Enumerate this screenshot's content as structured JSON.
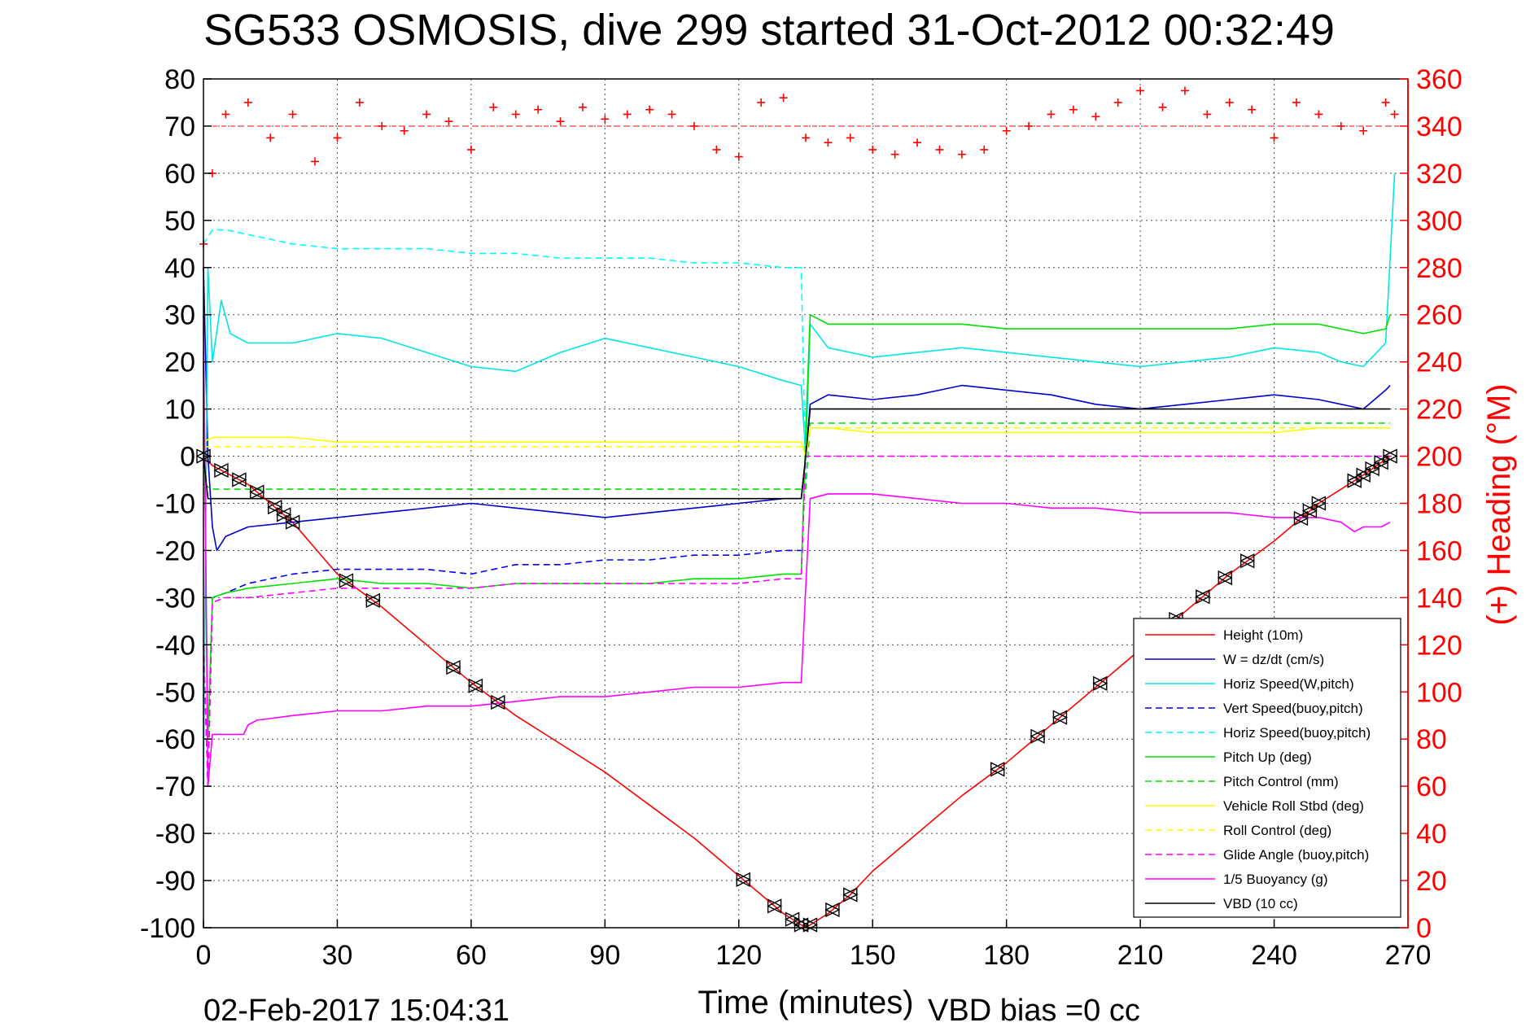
{
  "chart_data": {
    "type": "line",
    "title": "SG533 OSMOSIS, dive 299 started 31-Oct-2012 00:32:49",
    "xlabel": "Time (minutes)",
    "ylabel": "",
    "ylabel_right": "(+) Heading (°M)",
    "xlim": [
      0,
      270
    ],
    "ylim": [
      -100,
      80
    ],
    "ylim_right": [
      0,
      360
    ],
    "x_ticks": [
      "0",
      "30",
      "60",
      "90",
      "120",
      "150",
      "180",
      "210",
      "240",
      "270"
    ],
    "y_ticks": [
      "80",
      "70",
      "60",
      "50",
      "40",
      "30",
      "20",
      "10",
      "0",
      "-10",
      "-20",
      "-30",
      "-40",
      "-50",
      "-60",
      "-70",
      "-80",
      "-90",
      "-100"
    ],
    "y_ticks_right": [
      "360",
      "340",
      "320",
      "300",
      "280",
      "260",
      "240",
      "220",
      "200",
      "180",
      "160",
      "140",
      "120",
      "100",
      "80",
      "60",
      "40",
      "20",
      "0"
    ],
    "grid": true,
    "legend_position": "bottom-right",
    "footer_date": "02-Feb-2017 15:04:31",
    "footer_bias": "VBD bias =0 cc",
    "series": [
      {
        "name": "Height (10m)",
        "color": "#ff0000",
        "style": "solid",
        "x": [
          0,
          2,
          10,
          20,
          30,
          40,
          50,
          60,
          70,
          80,
          90,
          100,
          110,
          120,
          125,
          130,
          135,
          140,
          145,
          150,
          160,
          170,
          180,
          190,
          200,
          210,
          220,
          230,
          240,
          250,
          260,
          266
        ],
        "y": [
          0,
          -2,
          -6,
          -14,
          -25,
          -32,
          -40,
          -48,
          -55,
          -61,
          -67,
          -74,
          -81,
          -89,
          -93,
          -97,
          -100,
          -97,
          -93,
          -88,
          -80,
          -72,
          -65,
          -57,
          -49,
          -41,
          -33,
          -25,
          -18,
          -10,
          -4,
          0
        ]
      },
      {
        "name": "W = dz/dt (cm/s)",
        "color": "#0000cc",
        "style": "solid",
        "x": [
          0,
          1,
          2,
          3,
          5,
          10,
          20,
          30,
          40,
          50,
          60,
          70,
          80,
          90,
          100,
          110,
          120,
          130,
          134,
          135,
          136,
          140,
          150,
          160,
          170,
          180,
          190,
          200,
          210,
          220,
          230,
          240,
          250,
          255,
          260,
          265,
          266
        ],
        "y": [
          40,
          0,
          -15,
          -20,
          -17,
          -15,
          -14,
          -13,
          -12,
          -11,
          -10,
          -11,
          -12,
          -13,
          -12,
          -11,
          -10,
          -9,
          -9,
          0,
          11,
          13,
          12,
          13,
          15,
          14,
          13,
          11,
          10,
          11,
          12,
          13,
          12,
          11,
          10,
          14,
          15
        ]
      },
      {
        "name": "Horiz Speed(W,pitch)",
        "color": "#00e5e5",
        "style": "solid",
        "x": [
          0,
          1,
          2,
          4,
          6,
          10,
          20,
          30,
          40,
          50,
          60,
          70,
          80,
          90,
          100,
          110,
          120,
          130,
          134,
          135,
          136,
          140,
          150,
          160,
          170,
          180,
          190,
          200,
          210,
          220,
          230,
          240,
          250,
          255,
          260,
          265,
          267
        ],
        "y": [
          -70,
          40,
          20,
          33,
          26,
          24,
          24,
          26,
          25,
          22,
          19,
          18,
          22,
          25,
          23,
          21,
          19,
          16,
          15,
          0,
          28,
          23,
          21,
          22,
          23,
          22,
          21,
          20,
          19,
          20,
          21,
          23,
          22,
          20,
          19,
          24,
          60
        ]
      },
      {
        "name": "Vert Speed(buoy,pitch)",
        "color": "#0000ff",
        "style": "dashed",
        "x": [
          0,
          1,
          2,
          5,
          10,
          20,
          30,
          40,
          50,
          60,
          70,
          80,
          90,
          100,
          110,
          120,
          130,
          134,
          135
        ],
        "y": [
          -40,
          -70,
          -30,
          -29,
          -27,
          -25,
          -24,
          -24,
          -24,
          -25,
          -23,
          -23,
          -22,
          -22,
          -21,
          -21,
          -20,
          -20,
          -20
        ]
      },
      {
        "name": "Horiz Speed(buoy,pitch)",
        "color": "#00ffff",
        "style": "dashed",
        "x": [
          0,
          2,
          5,
          10,
          20,
          30,
          40,
          50,
          60,
          70,
          80,
          90,
          100,
          110,
          120,
          130,
          134,
          135
        ],
        "y": [
          45,
          48,
          48,
          47,
          45,
          44,
          44,
          44,
          43,
          43,
          42,
          42,
          42,
          41,
          41,
          40,
          40,
          -5
        ]
      },
      {
        "name": "Pitch Up (deg)",
        "color": "#00e000",
        "style": "solid",
        "x": [
          0,
          1,
          2,
          5,
          10,
          20,
          30,
          40,
          50,
          60,
          70,
          80,
          90,
          100,
          110,
          120,
          130,
          134,
          135,
          136,
          140,
          150,
          160,
          170,
          180,
          190,
          200,
          210,
          220,
          230,
          240,
          250,
          255,
          260,
          265,
          266
        ],
        "y": [
          20,
          -60,
          -30,
          -29,
          -28,
          -27,
          -26,
          -27,
          -27,
          -28,
          -27,
          -27,
          -27,
          -27,
          -26,
          -26,
          -25,
          -25,
          5,
          30,
          28,
          28,
          28,
          28,
          27,
          27,
          27,
          27,
          27,
          27,
          28,
          28,
          27,
          26,
          27,
          30
        ]
      },
      {
        "name": "Pitch Control (mm)",
        "color": "#00e000",
        "style": "dashed",
        "x": [
          0,
          2,
          135,
          136,
          266
        ],
        "y": [
          -6,
          -7,
          -7,
          7,
          7
        ]
      },
      {
        "name": "Vehicle Roll Stbd (deg)",
        "color": "#ffff00",
        "style": "solid",
        "x": [
          0,
          2,
          10,
          20,
          30,
          40,
          50,
          60,
          70,
          80,
          90,
          100,
          110,
          120,
          130,
          134,
          135,
          136,
          140,
          150,
          160,
          170,
          180,
          190,
          200,
          210,
          220,
          230,
          240,
          250,
          260,
          266
        ],
        "y": [
          3,
          4,
          4,
          4,
          3,
          3,
          3,
          3,
          3,
          3,
          3,
          3,
          3,
          3,
          3,
          3,
          0,
          6,
          6,
          5,
          5,
          5,
          5,
          5,
          5,
          5,
          5,
          5,
          5,
          6,
          6,
          6
        ]
      },
      {
        "name": "Roll Control (deg)",
        "color": "#ffff00",
        "style": "dashed",
        "x": [
          0,
          135,
          136,
          266
        ],
        "y": [
          2,
          2,
          6,
          6
        ]
      },
      {
        "name": "Glide Angle (buoy,pitch)",
        "color": "#ff00ff",
        "style": "dashed",
        "x": [
          0,
          1,
          2,
          5,
          10,
          20,
          30,
          40,
          50,
          60,
          70,
          80,
          90,
          100,
          110,
          120,
          130,
          134,
          135,
          136,
          266
        ],
        "y": [
          -40,
          -70,
          -31,
          -30,
          -30,
          -29,
          -28,
          -28,
          -28,
          -28,
          -27,
          -27,
          -27,
          -27,
          -27,
          -27,
          -26,
          -26,
          0,
          0,
          0
        ]
      },
      {
        "name": "1/5 Buoyancy (g)",
        "color": "#ff00ff",
        "style": "solid",
        "x": [
          0,
          1,
          2,
          9,
          10,
          12,
          20,
          30,
          40,
          50,
          60,
          70,
          80,
          90,
          100,
          110,
          120,
          130,
          134,
          135,
          136,
          140,
          150,
          160,
          170,
          180,
          190,
          200,
          210,
          220,
          230,
          240,
          250,
          255,
          258,
          260,
          264,
          266
        ],
        "y": [
          30,
          -70,
          -59,
          -59,
          -57,
          -56,
          -55,
          -54,
          -54,
          -53,
          -53,
          -52,
          -51,
          -51,
          -50,
          -49,
          -49,
          -48,
          -48,
          -28,
          -9,
          -8,
          -8,
          -9,
          -10,
          -10,
          -11,
          -11,
          -12,
          -12,
          -12,
          -13,
          -13,
          -14,
          -16,
          -15,
          -15,
          -14
        ]
      },
      {
        "name": "VBD (10 cc)",
        "color": "#000000",
        "style": "solid",
        "x": [
          0,
          1,
          2,
          134,
          135,
          136,
          266
        ],
        "y": [
          0,
          -9,
          -9,
          -9,
          0,
          10,
          10
        ]
      }
    ],
    "heading_series": {
      "name": "Heading",
      "color": "#ff0000",
      "marker": "+",
      "axis": "right",
      "x": [
        0,
        2,
        5,
        10,
        15,
        20,
        25,
        30,
        35,
        40,
        45,
        50,
        55,
        60,
        65,
        70,
        75,
        80,
        85,
        90,
        95,
        100,
        105,
        110,
        115,
        120,
        125,
        130,
        135,
        140,
        145,
        150,
        155,
        160,
        165,
        170,
        175,
        180,
        185,
        190,
        195,
        200,
        205,
        210,
        215,
        220,
        225,
        230,
        235,
        240,
        245,
        250,
        255,
        260,
        265,
        267
      ],
      "y": [
        290,
        320,
        345,
        350,
        335,
        345,
        325,
        335,
        350,
        340,
        338,
        345,
        342,
        330,
        348,
        345,
        347,
        342,
        348,
        343,
        345,
        347,
        345,
        340,
        330,
        327,
        350,
        352,
        335,
        333,
        335,
        330,
        328,
        333,
        330,
        328,
        330,
        338,
        340,
        345,
        347,
        344,
        350,
        355,
        348,
        355,
        345,
        350,
        347,
        335,
        350,
        345,
        340,
        338,
        350,
        345
      ]
    },
    "heading_reference": {
      "color": "#ff0000",
      "style": "dashed",
      "axis": "right",
      "value": 340
    },
    "markers": {
      "color": "#000000",
      "x": [
        0,
        4,
        8,
        12,
        16,
        18,
        20,
        32,
        38,
        56,
        61,
        66,
        121,
        128,
        132,
        134,
        136,
        141,
        145,
        178,
        187,
        192,
        201,
        218,
        224,
        229,
        234,
        246,
        248,
        250,
        258,
        260,
        262,
        264,
        266
      ]
    }
  }
}
